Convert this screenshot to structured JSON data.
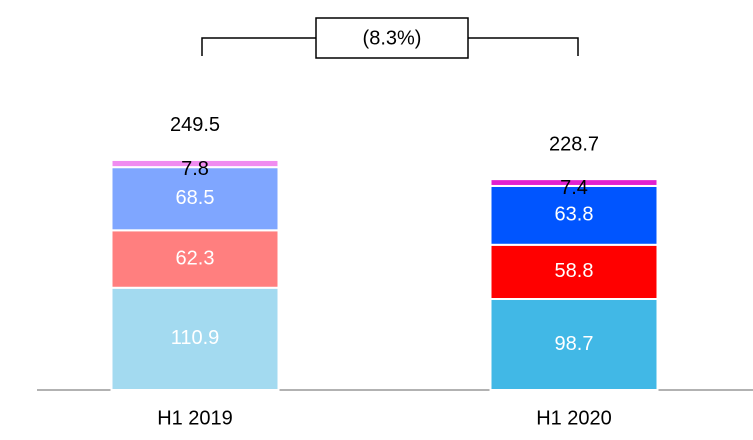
{
  "chart_data": {
    "type": "stacked_bar",
    "annotation": "(8.3%)",
    "categories": [
      "H1 2019",
      "H1 2020"
    ],
    "totals": [
      249.5,
      228.7
    ],
    "series": [
      {
        "colors": [
          "#a3daf0",
          "#41b8e6"
        ],
        "values": [
          110.9,
          98.7
        ]
      },
      {
        "colors": [
          "#ff7f7f",
          "#ff0000"
        ],
        "values": [
          62.3,
          58.8
        ]
      },
      {
        "colors": [
          "#7fa6ff",
          "#0055ff"
        ],
        "values": [
          68.5,
          63.8
        ]
      },
      {
        "colors": [
          "#f08cf0",
          "#e020d0"
        ],
        "values": [
          7.8,
          7.4
        ]
      }
    ]
  }
}
